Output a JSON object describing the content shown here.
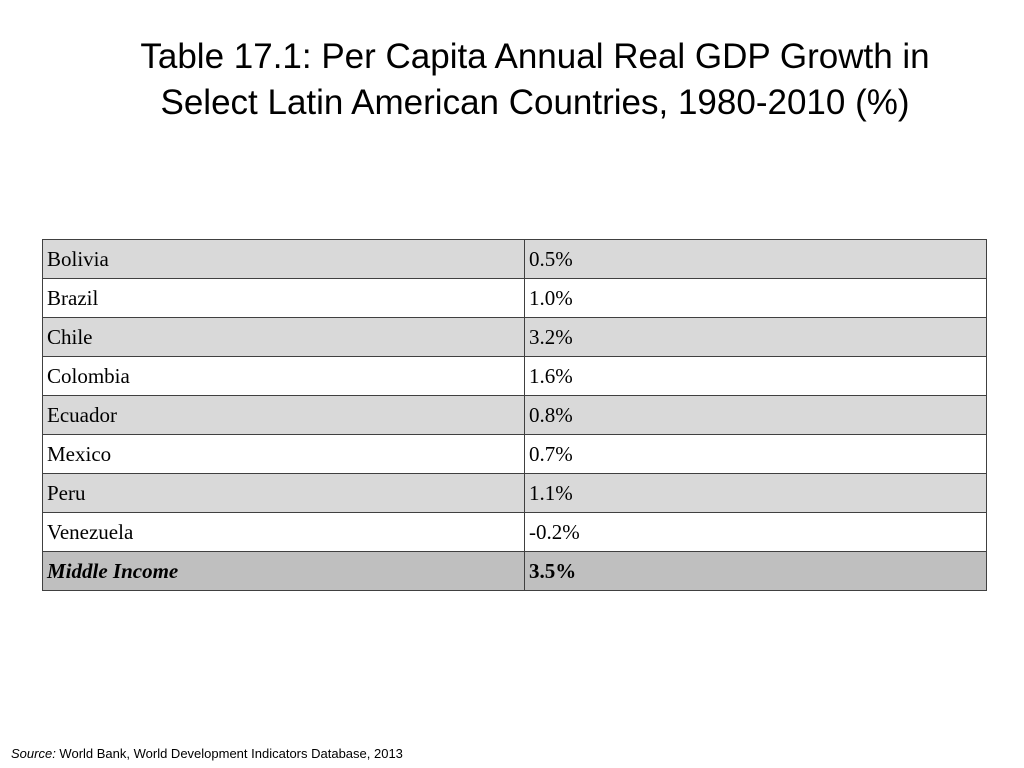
{
  "title": {
    "line1": "Table 17.1: Per Capita Annual Real GDP Growth in",
    "line2": "Select Latin American Countries, 1980-2010 (%)"
  },
  "table": {
    "rows": [
      {
        "country": "Bolivia",
        "value": "0.5%"
      },
      {
        "country": "Brazil",
        "value": "1.0%"
      },
      {
        "country": "Chile",
        "value": "3.2%"
      },
      {
        "country": "Colombia",
        "value": "1.6%"
      },
      {
        "country": "Ecuador",
        "value": "0.8%"
      },
      {
        "country": "Mexico",
        "value": "0.7%"
      },
      {
        "country": "Peru",
        "value": "1.1%"
      },
      {
        "country": "Venezuela",
        "value": "-0.2%"
      }
    ],
    "summary": {
      "country": "Middle Income",
      "value": "3.5%"
    }
  },
  "source": {
    "label": "Source:",
    "text": " World Bank, World Development Indicators Database, 2013"
  },
  "colors": {
    "shaded_row": "#d9d9d9",
    "summary_row": "#bfbfbf",
    "border": "#404040"
  }
}
